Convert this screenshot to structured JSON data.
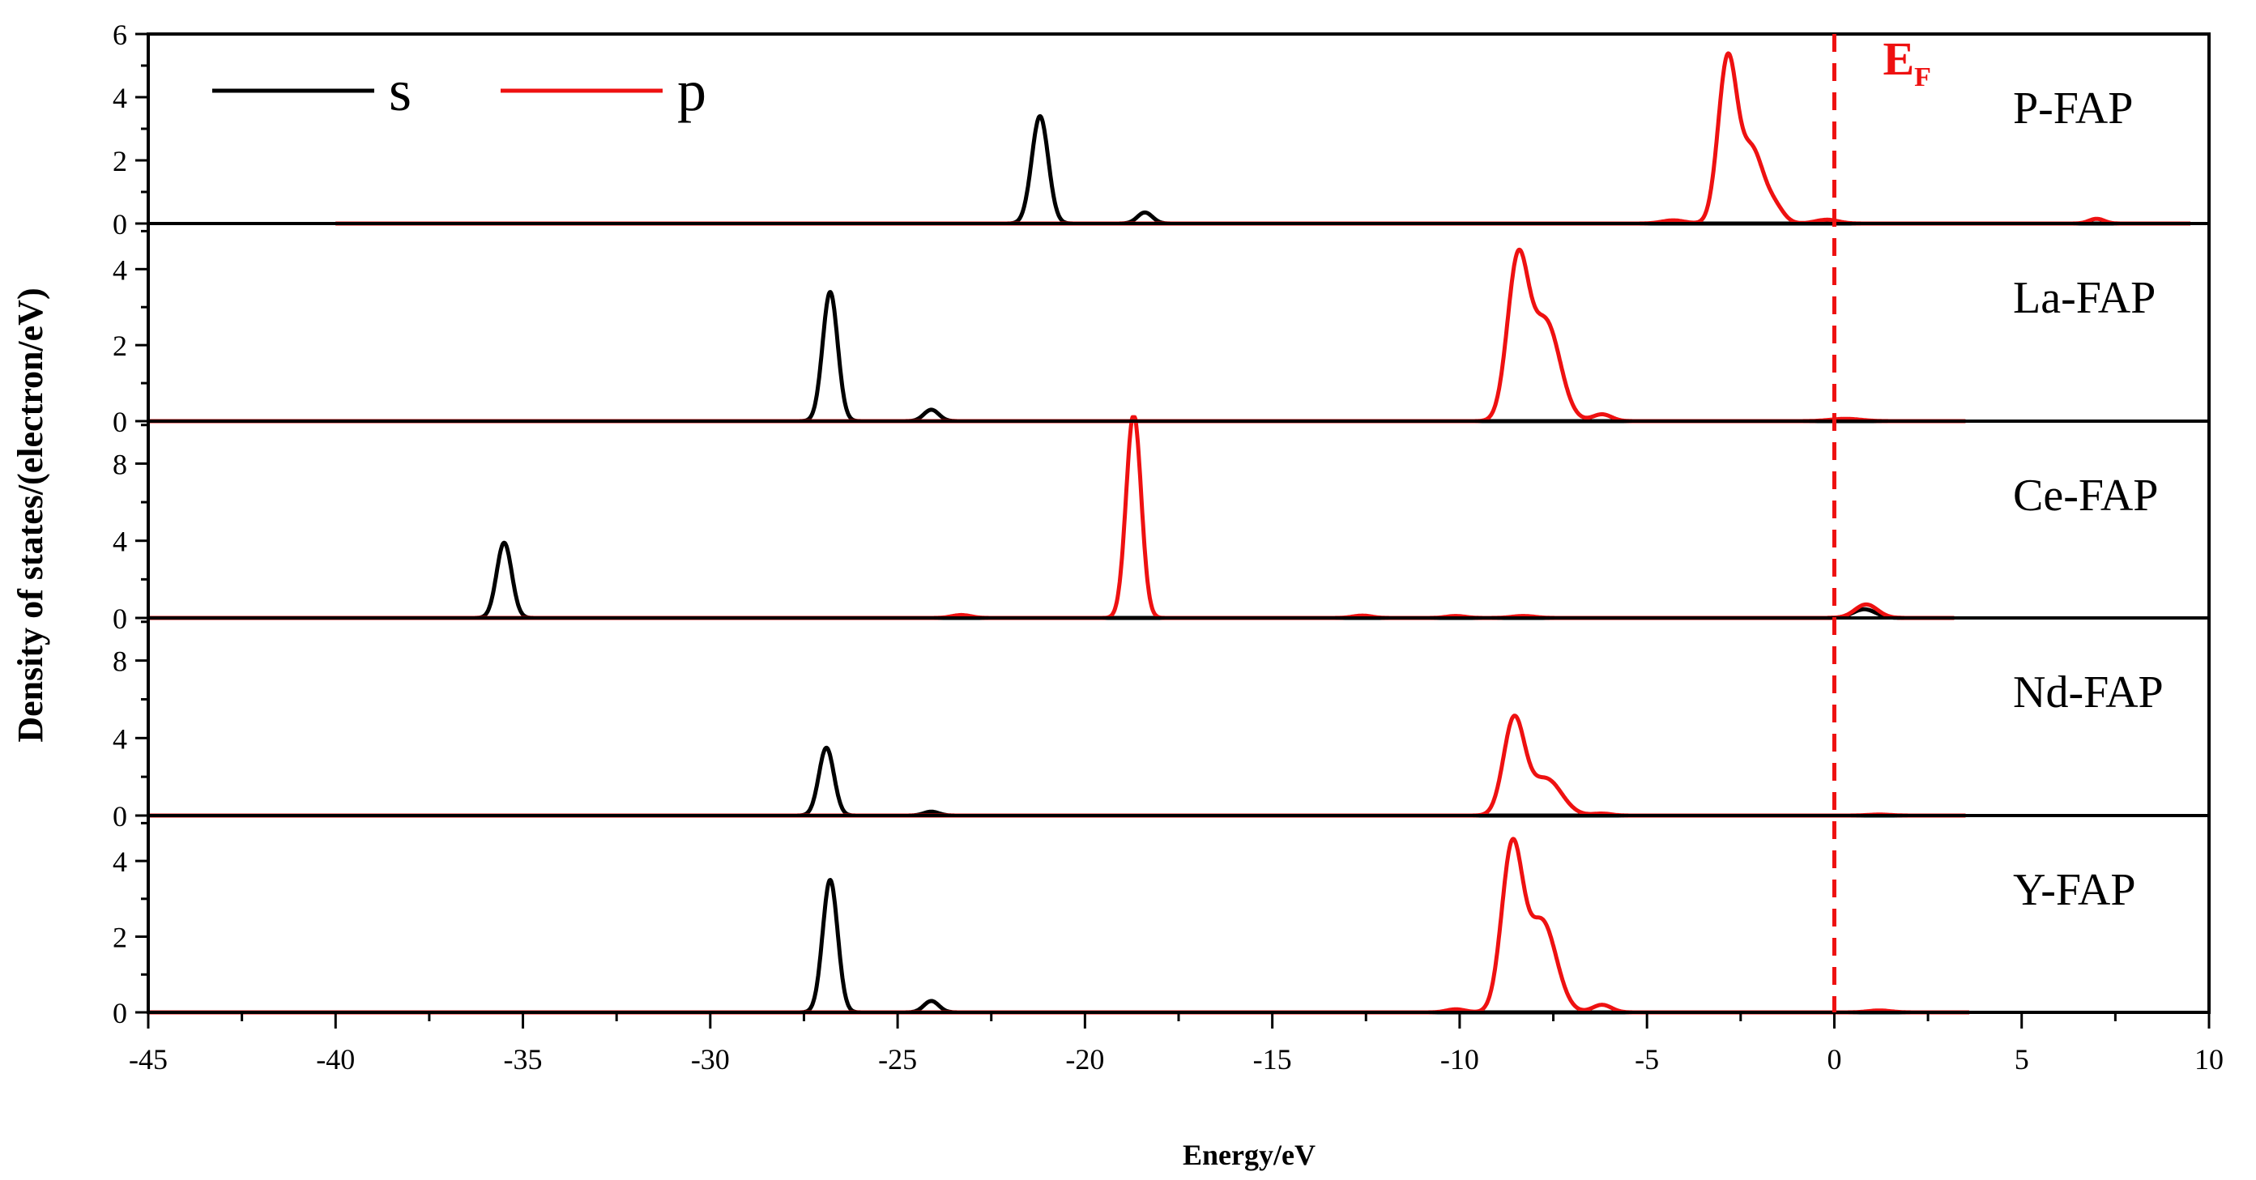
{
  "chart_data": {
    "type": "line",
    "xlabel": "Energy/eV",
    "ylabel": "Density of states/(electron/eV)",
    "xlim": [
      -45,
      10
    ],
    "x_ticks": [
      -45,
      -40,
      -35,
      -30,
      -25,
      -20,
      -15,
      -10,
      -5,
      0,
      5,
      10
    ],
    "fermi_level": {
      "x": 0,
      "label_main": "E",
      "label_sub": "F",
      "color": "#ee1111",
      "style": "dashed"
    },
    "legend": [
      {
        "name": "s",
        "color": "#000000"
      },
      {
        "name": "p",
        "color": "#ee1111"
      }
    ],
    "legend_position": "top-left",
    "panels": [
      {
        "name": "P-FAP",
        "ylim": [
          0,
          6
        ],
        "y_ticks": [
          0,
          2,
          4,
          6
        ],
        "x_range": [
          -40,
          9.5
        ],
        "series": {
          "s": [
            {
              "center": -21.2,
              "height": 3.4,
              "width": 0.22
            },
            {
              "center": -18.4,
              "height": 0.35,
              "width": 0.2
            }
          ],
          "p": [
            {
              "center": -2.85,
              "height": 5.15,
              "width": 0.25
            },
            {
              "center": -2.2,
              "height": 2.3,
              "width": 0.3
            },
            {
              "center": -1.6,
              "height": 0.5,
              "width": 0.25
            },
            {
              "center": -4.3,
              "height": 0.1,
              "width": 0.3
            },
            {
              "center": -0.2,
              "height": 0.12,
              "width": 0.3
            },
            {
              "center": 7.0,
              "height": 0.15,
              "width": 0.2
            }
          ]
        }
      },
      {
        "name": "La-FAP",
        "ylim": [
          0,
          5.2
        ],
        "y_ticks": [
          0,
          2,
          4
        ],
        "x_range": [
          -45,
          3.5
        ],
        "series": {
          "s": [
            {
              "center": -26.8,
              "height": 3.4,
              "width": 0.2
            },
            {
              "center": -24.1,
              "height": 0.3,
              "width": 0.2
            }
          ],
          "p": [
            {
              "center": -8.45,
              "height": 4.1,
              "width": 0.28
            },
            {
              "center": -7.7,
              "height": 2.6,
              "width": 0.38
            },
            {
              "center": -6.2,
              "height": 0.18,
              "width": 0.25
            },
            {
              "center": 0.3,
              "height": 0.06,
              "width": 0.4
            }
          ]
        }
      },
      {
        "name": "Ce-FAP",
        "ylim": [
          0,
          10.2
        ],
        "y_ticks": [
          0,
          4,
          8
        ],
        "x_range": [
          -45,
          3.2
        ],
        "series": {
          "s": [
            {
              "center": -35.5,
              "height": 3.9,
              "width": 0.2
            },
            {
              "center": 0.8,
              "height": 0.45,
              "width": 0.3
            }
          ],
          "p": [
            {
              "center": -18.7,
              "height": 10.6,
              "width": 0.2
            },
            {
              "center": -23.3,
              "height": 0.15,
              "width": 0.25
            },
            {
              "center": -12.6,
              "height": 0.12,
              "width": 0.25
            },
            {
              "center": -10.1,
              "height": 0.1,
              "width": 0.25
            },
            {
              "center": -8.3,
              "height": 0.1,
              "width": 0.3
            },
            {
              "center": 0.85,
              "height": 0.7,
              "width": 0.3
            }
          ]
        }
      },
      {
        "name": "Nd-FAP",
        "ylim": [
          0,
          10.2
        ],
        "y_ticks": [
          0,
          4,
          8
        ],
        "x_range": [
          -45,
          3.5
        ],
        "series": {
          "s": [
            {
              "center": -26.9,
              "height": 3.5,
              "width": 0.2
            },
            {
              "center": -24.1,
              "height": 0.2,
              "width": 0.2
            }
          ],
          "p": [
            {
              "center": -8.55,
              "height": 4.9,
              "width": 0.28
            },
            {
              "center": -7.7,
              "height": 1.9,
              "width": 0.42
            },
            {
              "center": -6.2,
              "height": 0.1,
              "width": 0.25
            },
            {
              "center": 1.2,
              "height": 0.05,
              "width": 0.3
            }
          ]
        }
      },
      {
        "name": "Y-FAP",
        "ylim": [
          0,
          5.2
        ],
        "y_ticks": [
          0,
          2,
          4
        ],
        "x_range": [
          -45,
          3.6
        ],
        "series": {
          "s": [
            {
              "center": -26.8,
              "height": 3.5,
              "width": 0.2
            },
            {
              "center": -24.1,
              "height": 0.3,
              "width": 0.2
            }
          ],
          "p": [
            {
              "center": -8.6,
              "height": 4.3,
              "width": 0.28
            },
            {
              "center": -7.8,
              "height": 2.4,
              "width": 0.38
            },
            {
              "center": -6.2,
              "height": 0.2,
              "width": 0.25
            },
            {
              "center": -10.1,
              "height": 0.08,
              "width": 0.25
            },
            {
              "center": 1.2,
              "height": 0.05,
              "width": 0.3
            }
          ]
        }
      }
    ]
  }
}
